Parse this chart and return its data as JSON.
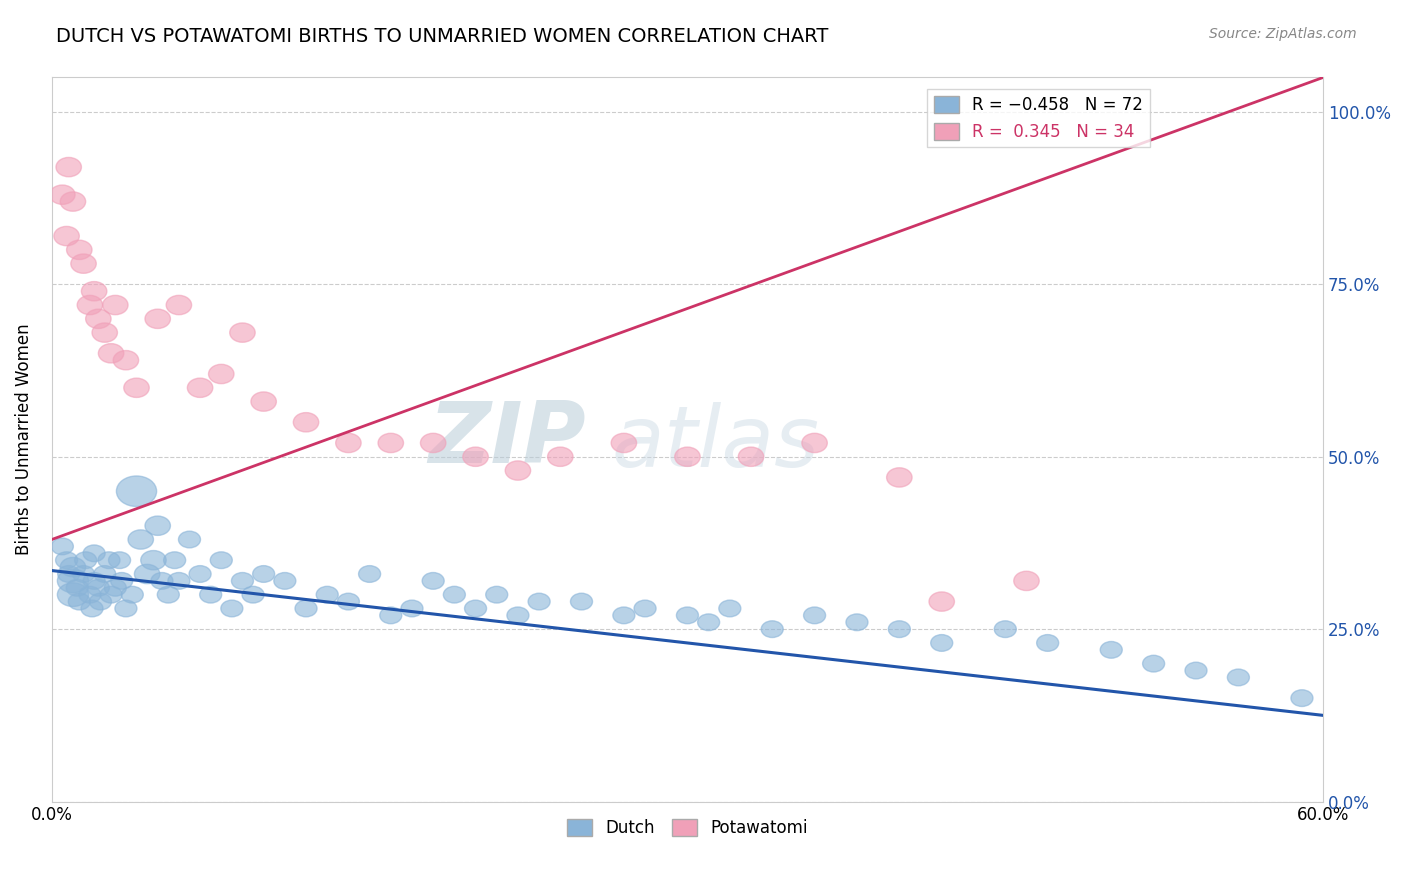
{
  "title": "DUTCH VS POTAWATOMI BIRTHS TO UNMARRIED WOMEN CORRELATION CHART",
  "source": "Source: ZipAtlas.com",
  "ylabel": "Births to Unmarried Women",
  "ytick_labels": [
    "0.0%",
    "25.0%",
    "50.0%",
    "75.0%",
    "100.0%"
  ],
  "ytick_values": [
    0.0,
    0.25,
    0.5,
    0.75,
    1.0
  ],
  "dutch_color": "#8ab4d8",
  "potawatomi_color": "#f0a0b8",
  "dutch_line_color": "#2255aa",
  "potawatomi_line_color": "#cc3366",
  "watermark_zip": "ZIP",
  "watermark_atlas": "atlas",
  "xmin": 0.0,
  "xmax": 0.6,
  "ymin": 0.0,
  "ymax": 1.05,
  "dutch_line_x0": 0.0,
  "dutch_line_y0": 0.335,
  "dutch_line_x1": 0.6,
  "dutch_line_y1": 0.125,
  "pota_line_x0": 0.0,
  "pota_line_y0": 0.38,
  "pota_line_x1": 0.6,
  "pota_line_y1": 1.05,
  "dutch_x": [
    0.005,
    0.007,
    0.008,
    0.01,
    0.01,
    0.01,
    0.012,
    0.013,
    0.015,
    0.016,
    0.018,
    0.019,
    0.02,
    0.02,
    0.022,
    0.023,
    0.025,
    0.027,
    0.028,
    0.03,
    0.032,
    0.033,
    0.035,
    0.038,
    0.04,
    0.042,
    0.045,
    0.048,
    0.05,
    0.052,
    0.055,
    0.058,
    0.06,
    0.065,
    0.07,
    0.075,
    0.08,
    0.085,
    0.09,
    0.095,
    0.1,
    0.11,
    0.12,
    0.13,
    0.14,
    0.15,
    0.16,
    0.17,
    0.18,
    0.19,
    0.2,
    0.21,
    0.22,
    0.23,
    0.25,
    0.27,
    0.28,
    0.3,
    0.31,
    0.32,
    0.34,
    0.36,
    0.38,
    0.4,
    0.42,
    0.45,
    0.47,
    0.5,
    0.52,
    0.54,
    0.56,
    0.59
  ],
  "dutch_y": [
    0.37,
    0.35,
    0.33,
    0.3,
    0.32,
    0.34,
    0.31,
    0.29,
    0.33,
    0.35,
    0.3,
    0.28,
    0.32,
    0.36,
    0.31,
    0.29,
    0.33,
    0.35,
    0.3,
    0.31,
    0.35,
    0.32,
    0.28,
    0.3,
    0.45,
    0.38,
    0.33,
    0.35,
    0.4,
    0.32,
    0.3,
    0.35,
    0.32,
    0.38,
    0.33,
    0.3,
    0.35,
    0.28,
    0.32,
    0.3,
    0.33,
    0.32,
    0.28,
    0.3,
    0.29,
    0.33,
    0.27,
    0.28,
    0.32,
    0.3,
    0.28,
    0.3,
    0.27,
    0.29,
    0.29,
    0.27,
    0.28,
    0.27,
    0.26,
    0.28,
    0.25,
    0.27,
    0.26,
    0.25,
    0.23,
    0.25,
    0.23,
    0.22,
    0.2,
    0.19,
    0.18,
    0.15
  ],
  "dutch_sizes": [
    60,
    60,
    60,
    120,
    120,
    80,
    60,
    60,
    60,
    60,
    60,
    60,
    60,
    60,
    60,
    60,
    60,
    60,
    60,
    60,
    60,
    60,
    60,
    60,
    200,
    80,
    80,
    80,
    80,
    60,
    60,
    60,
    60,
    60,
    60,
    60,
    60,
    60,
    60,
    60,
    60,
    60,
    60,
    60,
    60,
    60,
    60,
    60,
    60,
    60,
    60,
    60,
    60,
    60,
    60,
    60,
    60,
    60,
    60,
    60,
    60,
    60,
    60,
    60,
    60,
    60,
    60,
    60,
    60,
    60,
    60,
    60
  ],
  "potawatomi_x": [
    0.005,
    0.007,
    0.008,
    0.01,
    0.013,
    0.015,
    0.018,
    0.02,
    0.022,
    0.025,
    0.028,
    0.03,
    0.035,
    0.04,
    0.05,
    0.06,
    0.07,
    0.08,
    0.09,
    0.1,
    0.12,
    0.14,
    0.16,
    0.18,
    0.2,
    0.22,
    0.24,
    0.27,
    0.3,
    0.33,
    0.36,
    0.4,
    0.42,
    0.46
  ],
  "potawatomi_y": [
    0.88,
    0.82,
    0.92,
    0.87,
    0.8,
    0.78,
    0.72,
    0.74,
    0.7,
    0.68,
    0.65,
    0.72,
    0.64,
    0.6,
    0.7,
    0.72,
    0.6,
    0.62,
    0.68,
    0.58,
    0.55,
    0.52,
    0.52,
    0.52,
    0.5,
    0.48,
    0.5,
    0.52,
    0.5,
    0.5,
    0.52,
    0.47,
    0.29,
    0.32
  ]
}
